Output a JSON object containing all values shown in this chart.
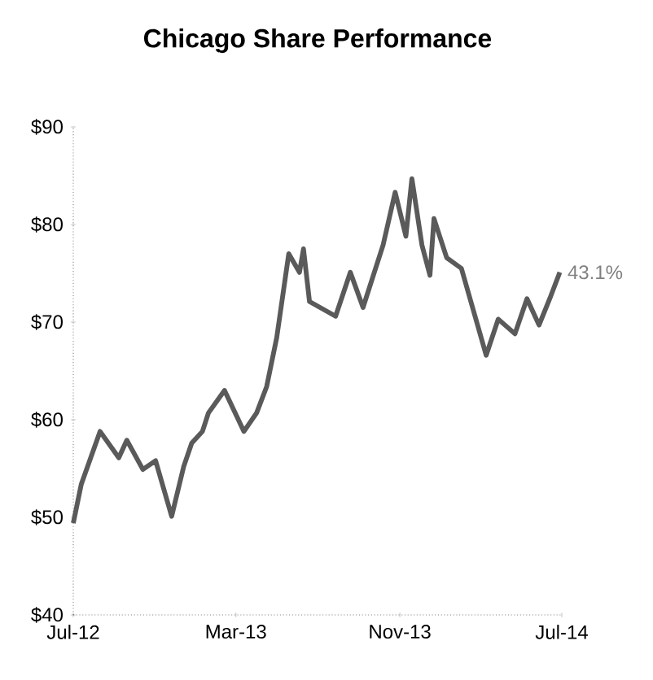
{
  "chart_data": {
    "type": "line",
    "title": "Chicago Share Performance",
    "color": "#5a5a5a",
    "x": [
      "2012-07-01",
      "2012-07-13",
      "2012-08-10",
      "2012-09-07",
      "2012-09-19",
      "2012-10-13",
      "2012-11-01",
      "2012-11-25",
      "2012-12-13",
      "2012-12-25",
      "2013-01-10",
      "2013-01-19",
      "2013-02-12",
      "2013-03-13",
      "2013-04-01",
      "2013-04-16",
      "2013-05-01",
      "2013-05-19",
      "2013-06-04",
      "2013-06-10",
      "2013-06-19",
      "2013-07-28",
      "2013-08-19",
      "2013-09-07",
      "2013-10-07",
      "2013-10-25",
      "2013-11-10",
      "2013-11-19",
      "2013-12-04",
      "2013-12-16",
      "2013-12-22",
      "2014-01-10",
      "2014-02-01",
      "2014-03-10",
      "2014-03-28",
      "2014-04-22",
      "2014-05-10",
      "2014-05-28",
      "2014-06-13",
      "2014-06-28"
    ],
    "values": [
      49.4,
      53.4,
      58.8,
      56.1,
      57.9,
      54.9,
      55.8,
      50.1,
      55.2,
      57.6,
      58.8,
      60.7,
      63.0,
      58.8,
      60.7,
      63.4,
      68.4,
      77.0,
      75.1,
      77.5,
      72.1,
      70.6,
      75.1,
      71.5,
      77.9,
      83.3,
      78.8,
      84.7,
      77.9,
      74.8,
      80.6,
      76.6,
      75.5,
      66.6,
      70.3,
      68.8,
      72.4,
      69.7,
      72.4,
      75.1
    ],
    "xlim": [
      "2012-07-01",
      "2014-07-01"
    ],
    "xticks": [
      {
        "value": "2012-07-01",
        "label": "Jul-12"
      },
      {
        "value": "2013-03-01",
        "label": "Mar-13"
      },
      {
        "value": "2013-11-01",
        "label": "Nov-13"
      },
      {
        "value": "2014-07-01",
        "label": "Jul-14"
      }
    ],
    "ylim": [
      40,
      90
    ],
    "yticks": [
      {
        "value": 40,
        "label": "$40"
      },
      {
        "value": 50,
        "label": "$50"
      },
      {
        "value": 60,
        "label": "$60"
      },
      {
        "value": 70,
        "label": "$70"
      },
      {
        "value": 80,
        "label": "$80"
      },
      {
        "value": 90,
        "label": "$90"
      }
    ],
    "annotations": [
      {
        "text": "43.1%",
        "x": "2014-06-28",
        "y": 75.1
      }
    ]
  }
}
